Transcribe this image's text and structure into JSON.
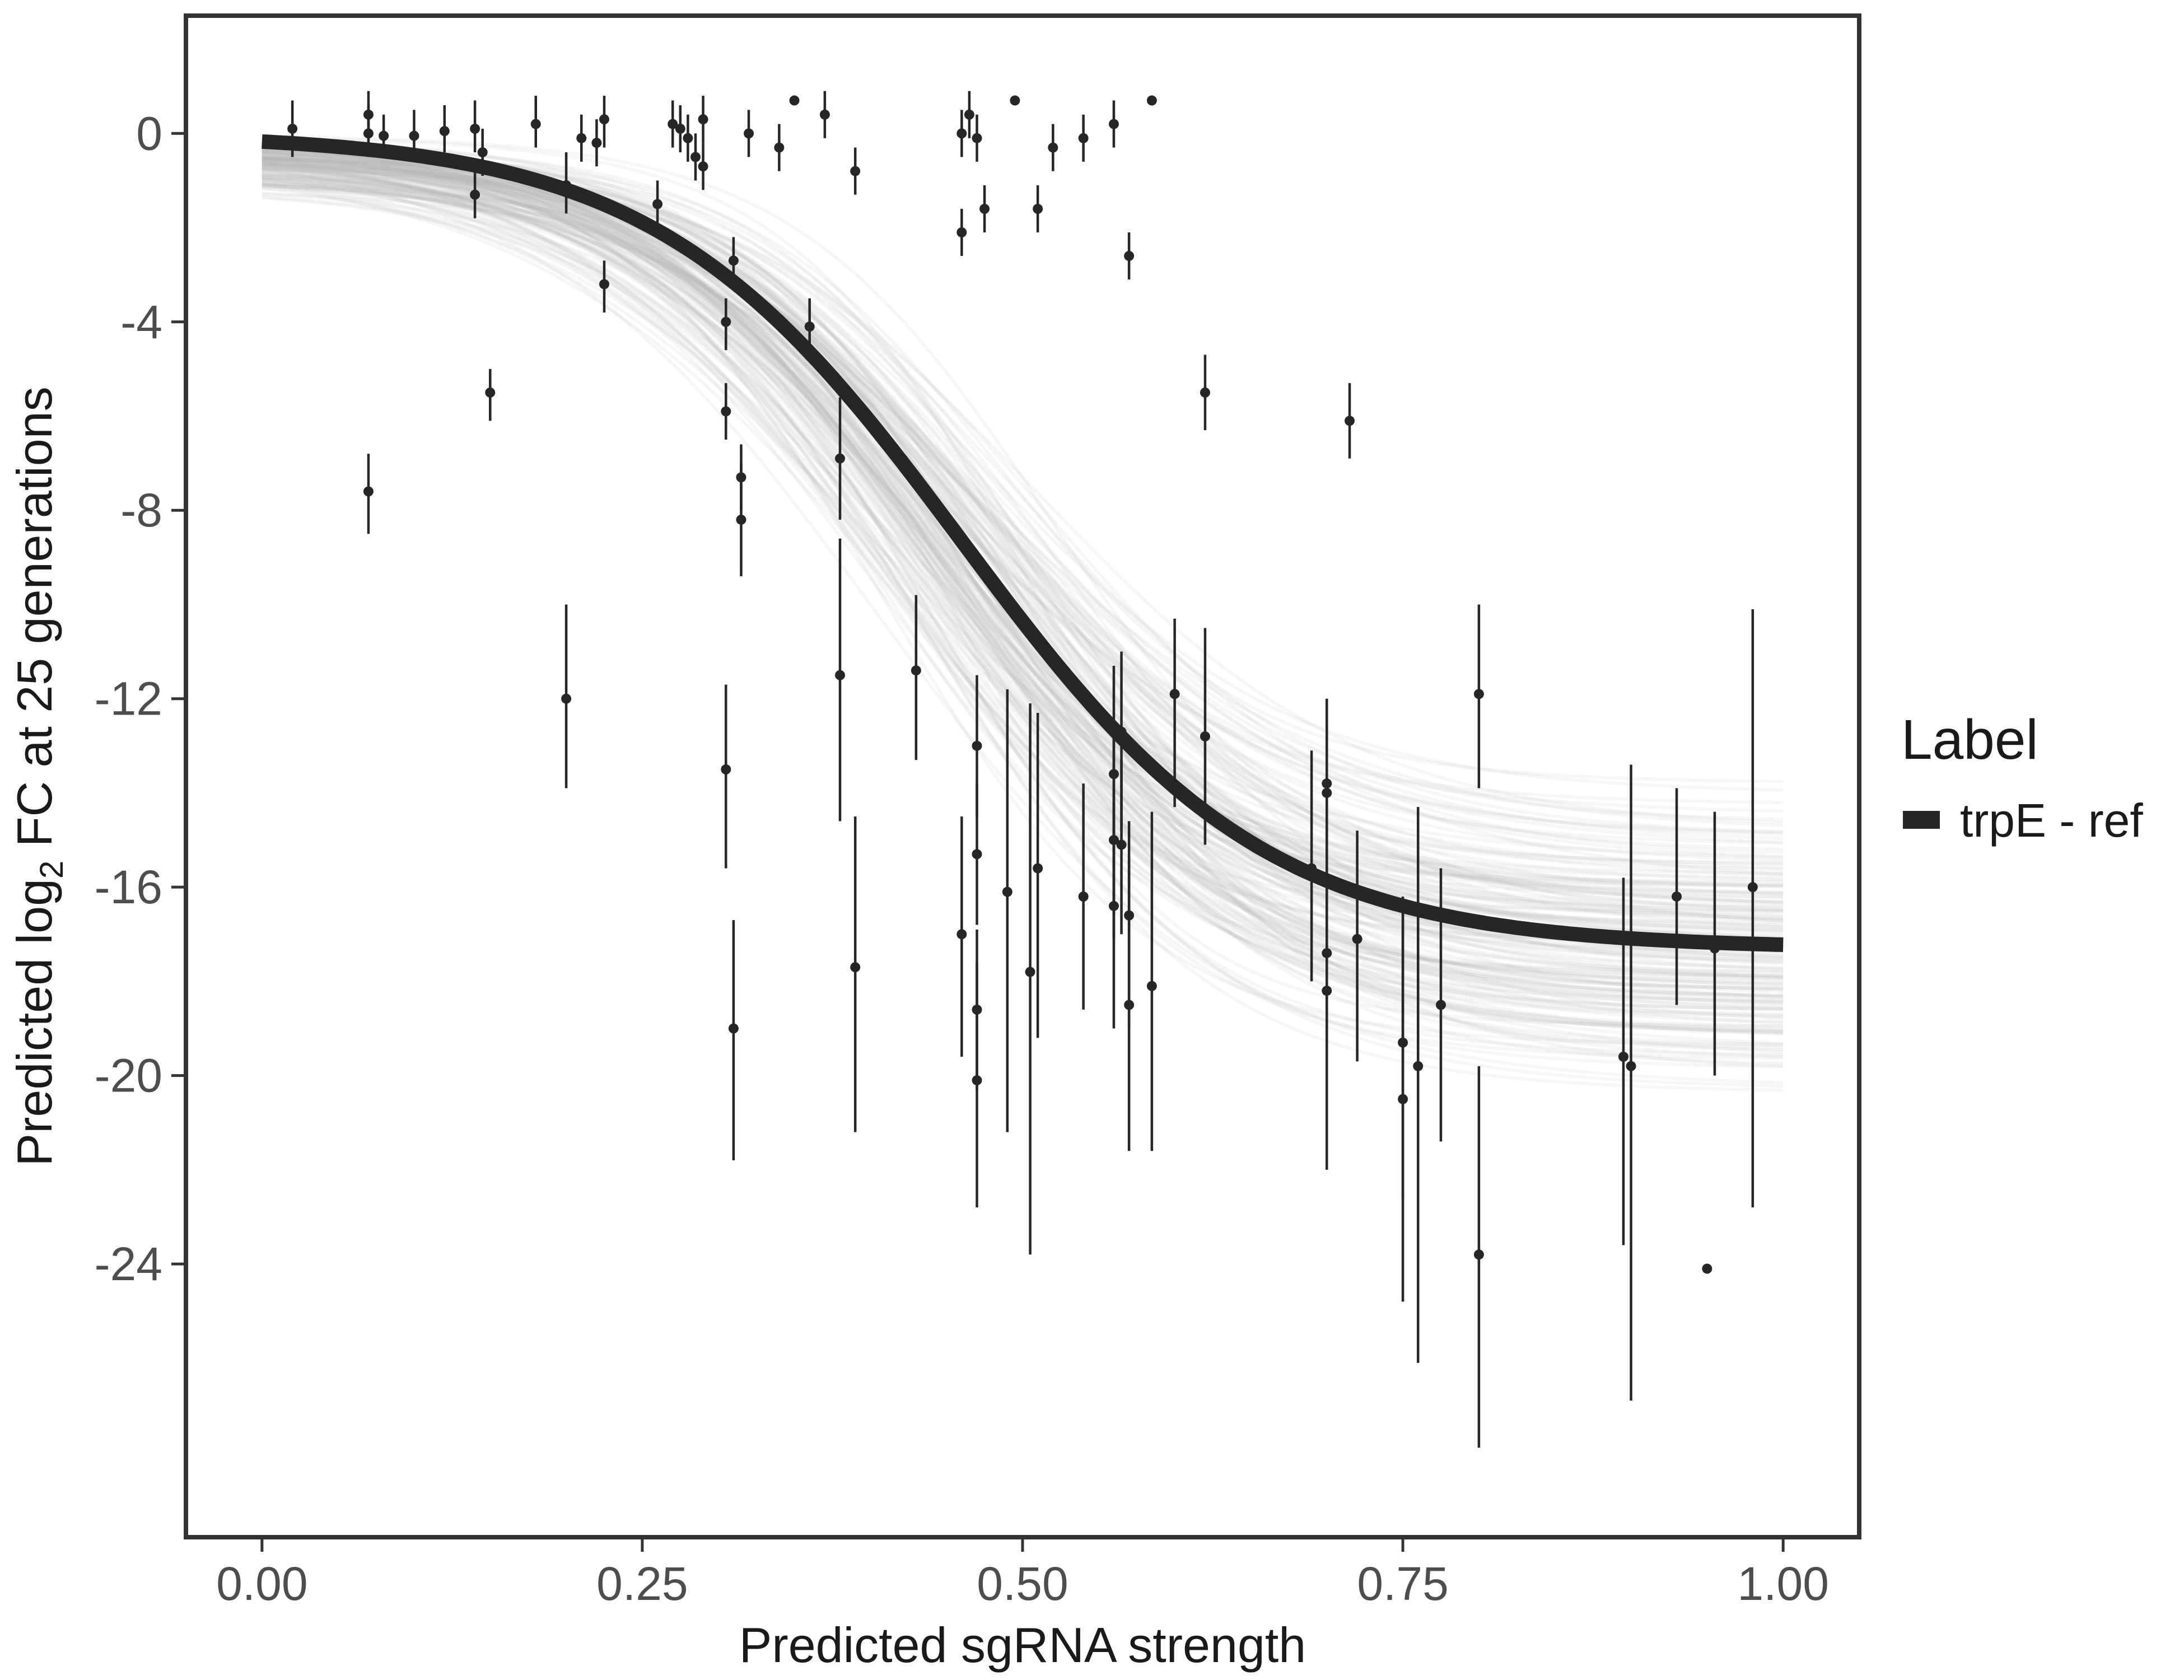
{
  "chart_data": {
    "type": "scatter",
    "title": "",
    "xlabel": "Predicted sgRNA strength",
    "ylabel": {
      "before": "Predicted  log",
      "subscript": "2",
      "after": " FC at 25 generations"
    },
    "xlim": [
      -0.05,
      1.05
    ],
    "ylim": [
      -29.8,
      2.5
    ],
    "x_ticks": [
      0.0,
      0.25,
      0.5,
      0.75,
      1.0
    ],
    "x_tick_labels": [
      "0.00",
      "0.25",
      "0.50",
      "0.75",
      "1.00"
    ],
    "y_ticks": [
      0,
      -4,
      -8,
      -12,
      -16,
      -20,
      -24
    ],
    "y_tick_labels": [
      "0",
      "-4",
      "-8",
      "-12",
      "-16",
      "-20",
      "-24"
    ],
    "grid": false,
    "legend": {
      "title": "Label",
      "placement": "right",
      "entries": [
        {
          "name": "trpE - ref",
          "color": "#262626"
        }
      ]
    },
    "fit_curve": {
      "name": "trpE - ref",
      "color": "#262626",
      "form": "logistic",
      "params": {
        "upper": 0.0,
        "lower": -17.3,
        "midpoint": 0.46,
        "scale": 0.1
      }
    },
    "posterior_band": {
      "color": "#b3b3b3",
      "note_free": true
    },
    "points": [
      {
        "x": 0.02,
        "y": 0.1,
        "ylo": -0.5,
        "yhi": 0.7
      },
      {
        "x": 0.07,
        "y": 0.4,
        "ylo": -0.1,
        "yhi": 0.9
      },
      {
        "x": 0.07,
        "y": 0.0,
        "ylo": -0.5,
        "yhi": 0.6
      },
      {
        "x": 0.08,
        "y": -0.05,
        "ylo": -0.5,
        "yhi": 0.4
      },
      {
        "x": 0.1,
        "y": -0.05,
        "ylo": -0.5,
        "yhi": 0.5
      },
      {
        "x": 0.12,
        "y": 0.05,
        "ylo": -0.4,
        "yhi": 0.6
      },
      {
        "x": 0.14,
        "y": 0.1,
        "ylo": -0.4,
        "yhi": 0.7
      },
      {
        "x": 0.14,
        "y": -1.3,
        "ylo": -1.8,
        "yhi": -0.8
      },
      {
        "x": 0.145,
        "y": -0.4,
        "ylo": -0.9,
        "yhi": 0.1
      },
      {
        "x": 0.15,
        "y": -5.5,
        "ylo": -6.1,
        "yhi": -5.0
      },
      {
        "x": 0.07,
        "y": -7.6,
        "ylo": -8.5,
        "yhi": -6.8
      },
      {
        "x": 0.18,
        "y": 0.2,
        "ylo": -0.3,
        "yhi": 0.8
      },
      {
        "x": 0.2,
        "y": -1.1,
        "ylo": -1.7,
        "yhi": -0.4
      },
      {
        "x": 0.21,
        "y": -0.1,
        "ylo": -0.6,
        "yhi": 0.4
      },
      {
        "x": 0.22,
        "y": -0.2,
        "ylo": -0.7,
        "yhi": 0.3
      },
      {
        "x": 0.225,
        "y": 0.3,
        "ylo": -0.3,
        "yhi": 0.8
      },
      {
        "x": 0.225,
        "y": -3.2,
        "ylo": -3.8,
        "yhi": -2.7
      },
      {
        "x": 0.2,
        "y": -12.0,
        "ylo": -13.9,
        "yhi": -10.0
      },
      {
        "x": 0.26,
        "y": -1.5,
        "ylo": -2.0,
        "yhi": -1.0
      },
      {
        "x": 0.27,
        "y": 0.2,
        "ylo": -0.3,
        "yhi": 0.7
      },
      {
        "x": 0.275,
        "y": 0.1,
        "ylo": -0.4,
        "yhi": 0.6
      },
      {
        "x": 0.28,
        "y": -0.1,
        "ylo": -0.6,
        "yhi": 0.4
      },
      {
        "x": 0.285,
        "y": -0.5,
        "ylo": -1.0,
        "yhi": 0.0
      },
      {
        "x": 0.29,
        "y": -0.7,
        "ylo": -1.2,
        "yhi": -0.2
      },
      {
        "x": 0.29,
        "y": 0.3,
        "ylo": -0.2,
        "yhi": 0.8
      },
      {
        "x": 0.32,
        "y": 0.0,
        "ylo": -0.5,
        "yhi": 0.5
      },
      {
        "x": 0.31,
        "y": -2.7,
        "ylo": -3.2,
        "yhi": -2.2
      },
      {
        "x": 0.305,
        "y": -4.0,
        "ylo": -4.6,
        "yhi": -3.5
      },
      {
        "x": 0.305,
        "y": -5.9,
        "ylo": -6.5,
        "yhi": -5.3
      },
      {
        "x": 0.315,
        "y": -7.3,
        "ylo": -8.0,
        "yhi": -6.6
      },
      {
        "x": 0.315,
        "y": -8.2,
        "ylo": -9.4,
        "yhi": -7.0
      },
      {
        "x": 0.305,
        "y": -13.5,
        "ylo": -15.6,
        "yhi": -11.7
      },
      {
        "x": 0.31,
        "y": -19.0,
        "ylo": -21.8,
        "yhi": -16.7
      },
      {
        "x": 0.34,
        "y": -0.3,
        "ylo": -0.8,
        "yhi": 0.2
      },
      {
        "x": 0.35,
        "y": 0.7,
        "ylo": 0.7,
        "yhi": 0.7
      },
      {
        "x": 0.36,
        "y": -4.1,
        "ylo": -4.7,
        "yhi": -3.5
      },
      {
        "x": 0.37,
        "y": 0.4,
        "ylo": -0.1,
        "yhi": 0.9
      },
      {
        "x": 0.38,
        "y": -6.9,
        "ylo": -8.2,
        "yhi": -5.6
      },
      {
        "x": 0.38,
        "y": -11.5,
        "ylo": -14.6,
        "yhi": -8.6
      },
      {
        "x": 0.39,
        "y": -0.8,
        "ylo": -1.3,
        "yhi": -0.3
      },
      {
        "x": 0.39,
        "y": -17.7,
        "ylo": -21.2,
        "yhi": -14.5
      },
      {
        "x": 0.43,
        "y": -11.4,
        "ylo": -13.3,
        "yhi": -9.8
      },
      {
        "x": 0.46,
        "y": 0.0,
        "ylo": -0.5,
        "yhi": 0.5
      },
      {
        "x": 0.46,
        "y": -2.1,
        "ylo": -2.6,
        "yhi": -1.6
      },
      {
        "x": 0.465,
        "y": 0.4,
        "ylo": -0.1,
        "yhi": 0.9
      },
      {
        "x": 0.47,
        "y": -0.1,
        "ylo": -0.6,
        "yhi": 0.4
      },
      {
        "x": 0.475,
        "y": -1.6,
        "ylo": -2.1,
        "yhi": -1.1
      },
      {
        "x": 0.46,
        "y": -17.0,
        "ylo": -19.6,
        "yhi": -14.5
      },
      {
        "x": 0.47,
        "y": -13.0,
        "ylo": -14.5,
        "yhi": -11.5
      },
      {
        "x": 0.47,
        "y": -15.3,
        "ylo": -16.8,
        "yhi": -13.8
      },
      {
        "x": 0.47,
        "y": -18.6,
        "ylo": -20.3,
        "yhi": -16.9
      },
      {
        "x": 0.47,
        "y": -20.1,
        "ylo": -22.8,
        "yhi": -17.6
      },
      {
        "x": 0.49,
        "y": -16.1,
        "ylo": -21.2,
        "yhi": -11.8
      },
      {
        "x": 0.495,
        "y": 0.7,
        "ylo": 0.7,
        "yhi": 0.7
      },
      {
        "x": 0.505,
        "y": -17.8,
        "ylo": -23.8,
        "yhi": -12.1
      },
      {
        "x": 0.51,
        "y": -1.6,
        "ylo": -2.1,
        "yhi": -1.1
      },
      {
        "x": 0.51,
        "y": -15.6,
        "ylo": -19.2,
        "yhi": -12.3
      },
      {
        "x": 0.52,
        "y": -0.3,
        "ylo": -0.8,
        "yhi": 0.2
      },
      {
        "x": 0.54,
        "y": -0.1,
        "ylo": -0.6,
        "yhi": 0.4
      },
      {
        "x": 0.54,
        "y": -16.2,
        "ylo": -18.6,
        "yhi": -13.8
      },
      {
        "x": 0.56,
        "y": 0.2,
        "ylo": -0.3,
        "yhi": 0.7
      },
      {
        "x": 0.56,
        "y": -13.6,
        "ylo": -16.6,
        "yhi": -11.3
      },
      {
        "x": 0.56,
        "y": -15.0,
        "ylo": -17.1,
        "yhi": -12.6
      },
      {
        "x": 0.56,
        "y": -16.4,
        "ylo": -19.0,
        "yhi": -14.2
      },
      {
        "x": 0.565,
        "y": -12.7,
        "ylo": -14.8,
        "yhi": -11.0
      },
      {
        "x": 0.565,
        "y": -15.1,
        "ylo": -17.0,
        "yhi": -13.3
      },
      {
        "x": 0.57,
        "y": -2.6,
        "ylo": -3.1,
        "yhi": -2.1
      },
      {
        "x": 0.57,
        "y": -16.6,
        "ylo": -19.0,
        "yhi": -14.6
      },
      {
        "x": 0.57,
        "y": -18.5,
        "ylo": -21.6,
        "yhi": -15.4
      },
      {
        "x": 0.585,
        "y": 0.7,
        "ylo": 0.7,
        "yhi": 0.7
      },
      {
        "x": 0.585,
        "y": -18.1,
        "ylo": -21.6,
        "yhi": -14.4
      },
      {
        "x": 0.6,
        "y": -11.9,
        "ylo": -14.3,
        "yhi": -10.3
      },
      {
        "x": 0.62,
        "y": -12.8,
        "ylo": -15.1,
        "yhi": -10.5
      },
      {
        "x": 0.62,
        "y": -5.5,
        "ylo": -6.3,
        "yhi": -4.7
      },
      {
        "x": 0.69,
        "y": -15.6,
        "ylo": -18.0,
        "yhi": -13.1
      },
      {
        "x": 0.7,
        "y": -13.8,
        "ylo": -15.6,
        "yhi": -12.0
      },
      {
        "x": 0.7,
        "y": -14.0,
        "ylo": -16.1,
        "yhi": -12.0
      },
      {
        "x": 0.7,
        "y": -17.4,
        "ylo": -19.5,
        "yhi": -15.3
      },
      {
        "x": 0.7,
        "y": -18.2,
        "ylo": -22.0,
        "yhi": -14.6
      },
      {
        "x": 0.715,
        "y": -6.1,
        "ylo": -6.9,
        "yhi": -5.3
      },
      {
        "x": 0.72,
        "y": -17.1,
        "ylo": -19.7,
        "yhi": -14.8
      },
      {
        "x": 0.75,
        "y": -19.3,
        "ylo": -22.6,
        "yhi": -16.3
      },
      {
        "x": 0.75,
        "y": -20.5,
        "ylo": -24.8,
        "yhi": -16.2
      },
      {
        "x": 0.76,
        "y": -19.8,
        "ylo": -26.1,
        "yhi": -14.3
      },
      {
        "x": 0.775,
        "y": -18.5,
        "ylo": -21.4,
        "yhi": -15.6
      },
      {
        "x": 0.8,
        "y": -11.9,
        "ylo": -13.9,
        "yhi": -10.0
      },
      {
        "x": 0.8,
        "y": -23.8,
        "ylo": -27.9,
        "yhi": -19.8
      },
      {
        "x": 0.895,
        "y": -19.6,
        "ylo": -23.6,
        "yhi": -15.8
      },
      {
        "x": 0.9,
        "y": -19.8,
        "ylo": -26.9,
        "yhi": -13.4
      },
      {
        "x": 0.93,
        "y": -16.2,
        "ylo": -18.5,
        "yhi": -13.9
      },
      {
        "x": 0.95,
        "y": -24.1,
        "ylo": -24.1,
        "yhi": -24.1
      },
      {
        "x": 0.955,
        "y": -17.3,
        "ylo": -20.0,
        "yhi": -14.4
      },
      {
        "x": 0.98,
        "y": -16.0,
        "ylo": -22.8,
        "yhi": -10.1
      }
    ]
  }
}
